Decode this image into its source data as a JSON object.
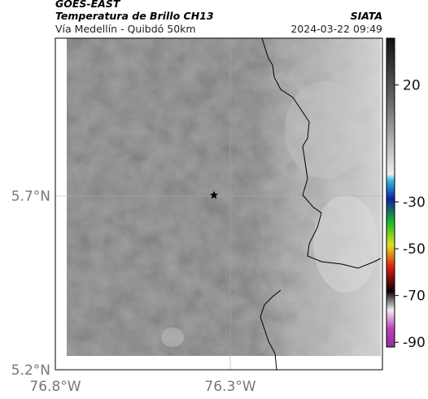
{
  "header": {
    "satellite": "GOES-EAST",
    "title": "Temperatura de Brillo CH13",
    "subtitle": "Vía Medellín - Quibdó 50km",
    "source": "SIATA",
    "datetime": "2024-03-22 09:49"
  },
  "map": {
    "lat_labels": [
      "5.7°N",
      "5.2°N"
    ],
    "lon_labels": [
      "76.8°W",
      "76.3°W"
    ]
  },
  "colorbar": {
    "lim": [
      40,
      -92
    ],
    "ticks": [
      20,
      -30,
      -50,
      -70,
      -90
    ]
  }
}
